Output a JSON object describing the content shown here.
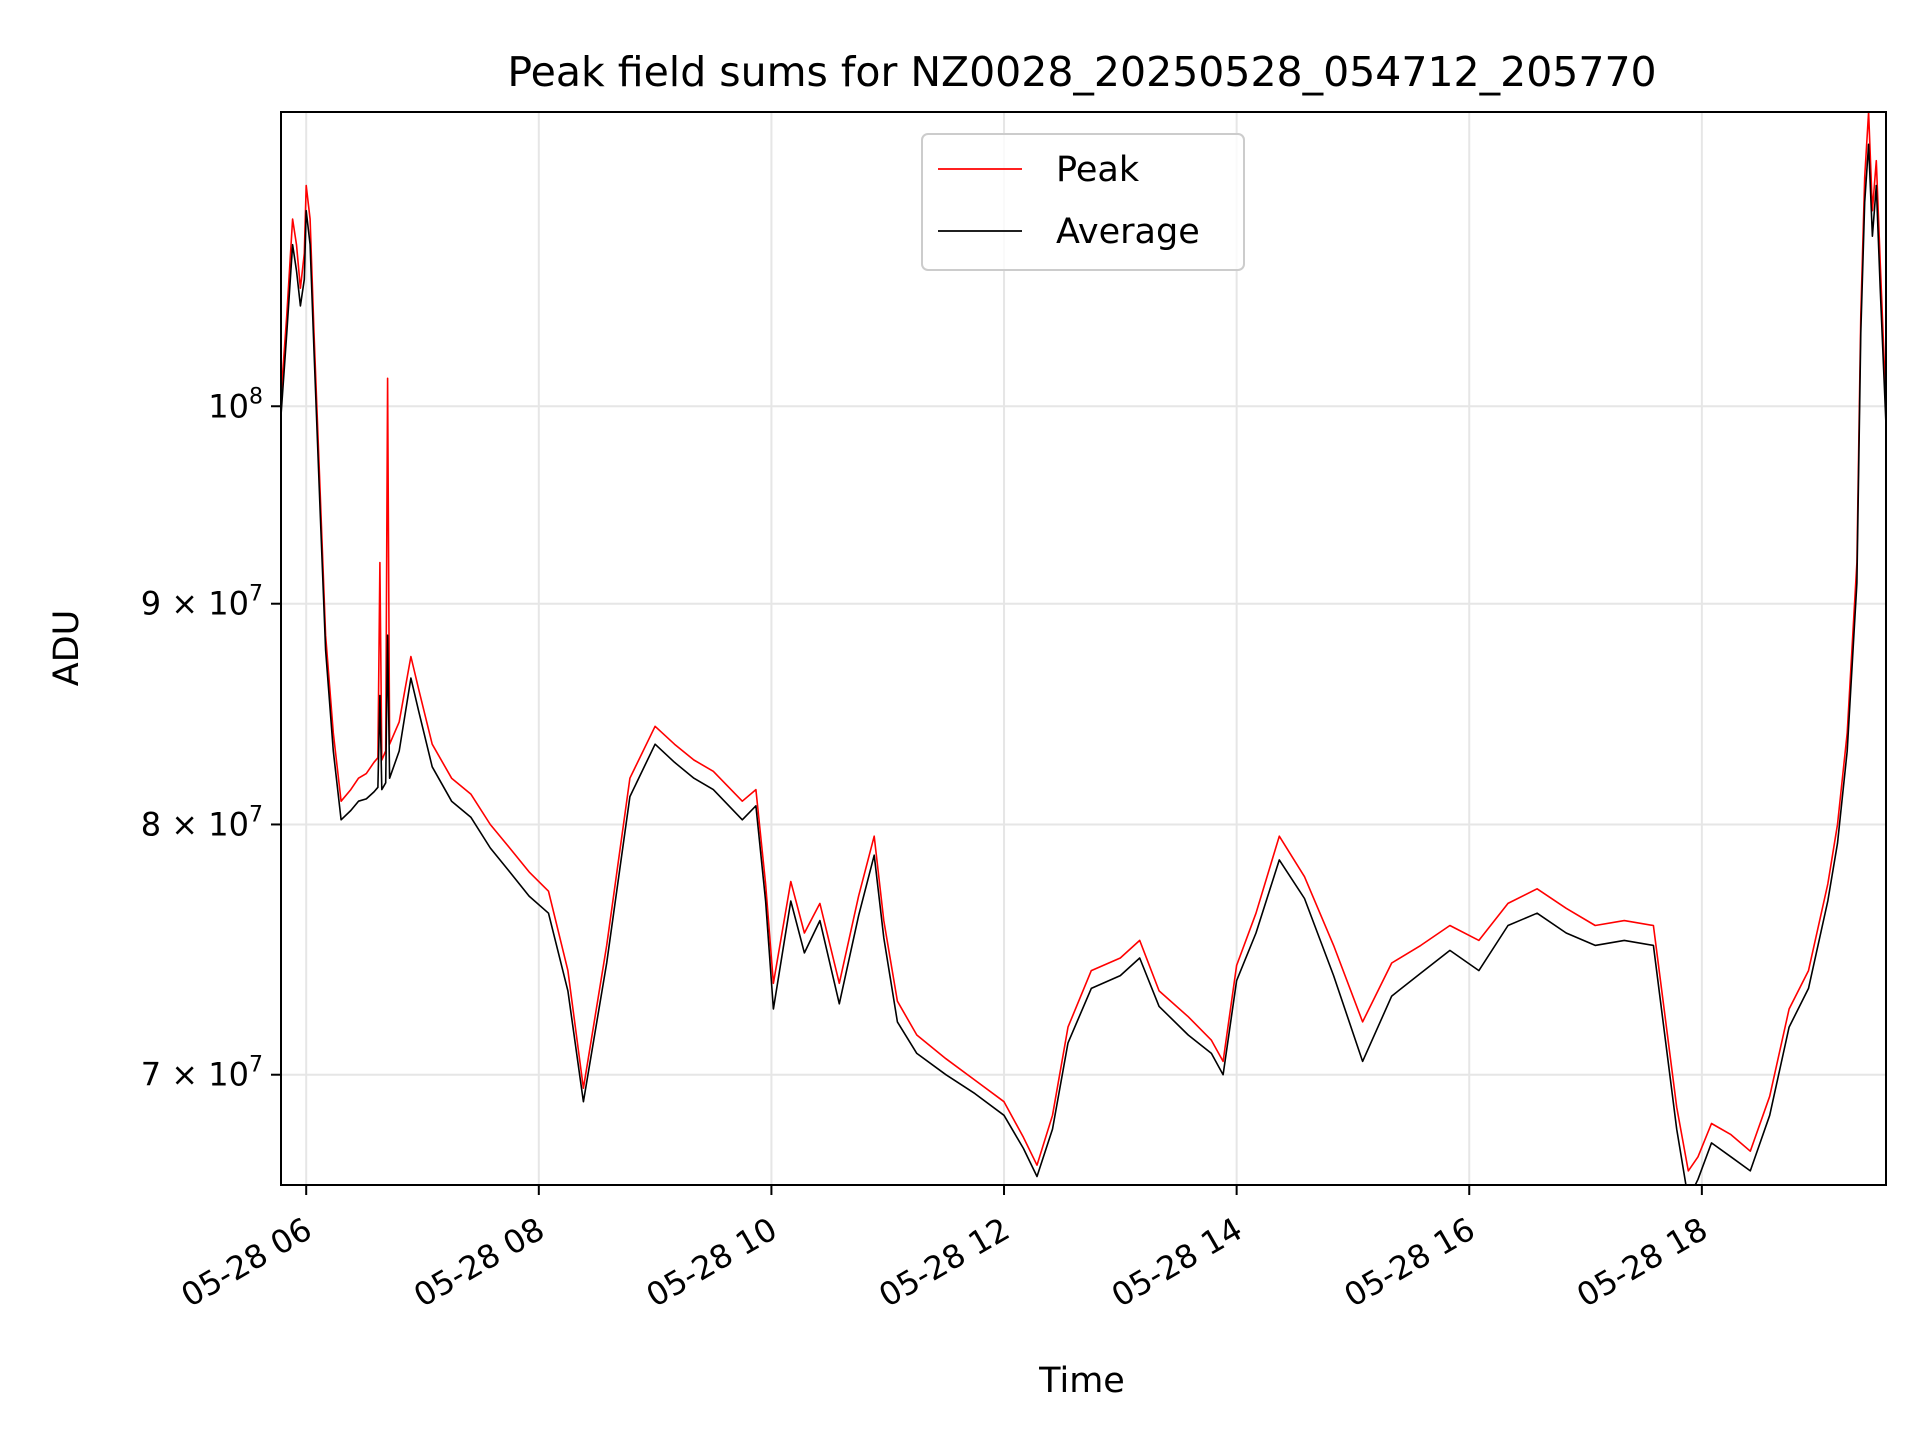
{
  "chart_data": {
    "type": "line",
    "title": "Peak field sums for NZ0028_20250528_054712_205770",
    "xlabel": "Time",
    "ylabel": "ADU",
    "yscale": "log",
    "xlim": [
      "05-28 05:47",
      "05-28 19:35"
    ],
    "ylim": [
      66000000,
      117000000
    ],
    "grid": true,
    "legend_position": "top-center",
    "x_ticks": [
      {
        "value": "05-28 06:00",
        "label": "05-28 06"
      },
      {
        "value": "05-28 08:00",
        "label": "05-28 08"
      },
      {
        "value": "05-28 10:00",
        "label": "05-28 10"
      },
      {
        "value": "05-28 12:00",
        "label": "05-28 12"
      },
      {
        "value": "05-28 14:00",
        "label": "05-28 14"
      },
      {
        "value": "05-28 16:00",
        "label": "05-28 16"
      },
      {
        "value": "05-28 18:00",
        "label": "05-28 18"
      }
    ],
    "y_ticks": [
      {
        "value": 70000000,
        "mantissa": "7",
        "base": "10",
        "exponent": "7"
      },
      {
        "value": 80000000,
        "mantissa": "8",
        "base": "10",
        "exponent": "7"
      },
      {
        "value": 90000000,
        "mantissa": "9",
        "base": "10",
        "exponent": "7"
      },
      {
        "value": 100000000,
        "mantissa": "",
        "base": "10",
        "exponent": "8"
      }
    ],
    "series": [
      {
        "name": "Peak",
        "color": "#ff0000",
        "x": [
          "05-28 05:47",
          "05-28 05:50",
          "05-28 05:53",
          "05-28 05:55",
          "05-28 05:57",
          "05-28 05:59",
          "05-28 06:00",
          "05-28 06:02",
          "05-28 06:04",
          "05-28 06:07",
          "05-28 06:10",
          "05-28 06:14",
          "05-28 06:18",
          "05-28 06:23",
          "05-28 06:27",
          "05-28 06:31",
          "05-28 06:35",
          "05-28 06:37",
          "05-28 06:38",
          "05-28 06:39",
          "05-28 06:41",
          "05-28 06:42",
          "05-28 06:43",
          "05-28 06:48",
          "05-28 06:54",
          "05-28 06:58",
          "05-28 07:05",
          "05-28 07:15",
          "05-28 07:25",
          "05-28 07:35",
          "05-28 07:45",
          "05-28 07:55",
          "05-28 08:05",
          "05-28 08:15",
          "05-28 08:23",
          "05-28 08:35",
          "05-28 08:47",
          "05-28 09:00",
          "05-28 09:10",
          "05-28 09:20",
          "05-28 09:30",
          "05-28 09:45",
          "05-28 09:52",
          "05-28 09:57",
          "05-28 10:01",
          "05-28 10:10",
          "05-28 10:17",
          "05-28 10:25",
          "05-28 10:35",
          "05-28 10:45",
          "05-28 10:53",
          "05-28 10:58",
          "05-28 11:05",
          "05-28 11:15",
          "05-28 11:30",
          "05-28 11:45",
          "05-28 12:00",
          "05-28 12:10",
          "05-28 12:17",
          "05-28 12:25",
          "05-28 12:33",
          "05-28 12:45",
          "05-28 13:00",
          "05-28 13:10",
          "05-28 13:20",
          "05-28 13:35",
          "05-28 13:47",
          "05-28 13:53",
          "05-28 14:00",
          "05-28 14:10",
          "05-28 14:22",
          "05-28 14:35",
          "05-28 14:50",
          "05-28 15:05",
          "05-28 15:20",
          "05-28 15:35",
          "05-28 15:50",
          "05-28 16:05",
          "05-28 16:20",
          "05-28 16:35",
          "05-28 16:50",
          "05-28 17:05",
          "05-28 17:20",
          "05-28 17:35",
          "05-28 17:47",
          "05-28 17:53",
          "05-28 17:58",
          "05-28 18:05",
          "05-28 18:15",
          "05-28 18:25",
          "05-28 18:35",
          "05-28 18:45",
          "05-28 18:55",
          "05-28 19:05",
          "05-28 19:10",
          "05-28 19:15",
          "05-28 19:20",
          "05-28 19:22",
          "05-28 19:24",
          "05-28 19:26",
          "05-28 19:28",
          "05-28 19:30",
          "05-28 19:32",
          "05-28 19:35"
        ],
        "values": [
          100500000,
          105000000,
          110500000,
          109000000,
          106500000,
          108500000,
          112500000,
          110500000,
          104000000,
          96000000,
          88500000,
          84000000,
          81000000,
          81500000,
          82000000,
          82200000,
          82700000,
          82900000,
          92000000,
          82800000,
          83200000,
          101500000,
          83500000,
          84500000,
          87500000,
          86000000,
          83500000,
          82000000,
          81300000,
          80000000,
          79000000,
          78000000,
          77200000,
          74000000,
          69500000,
          75000000,
          82000000,
          84300000,
          83500000,
          82800000,
          82300000,
          81000000,
          81500000,
          77500000,
          73500000,
          77600000,
          75500000,
          76700000,
          73500000,
          77000000,
          79500000,
          76000000,
          72800000,
          71500000,
          70600000,
          69800000,
          69000000,
          67700000,
          66700000,
          68500000,
          71800000,
          74000000,
          74500000,
          75200000,
          73200000,
          72200000,
          71300000,
          70500000,
          74200000,
          76300000,
          79500000,
          77800000,
          75000000,
          72000000,
          74300000,
          75000000,
          75800000,
          75200000,
          76700000,
          77300000,
          76500000,
          75800000,
          76000000,
          75800000,
          68800000,
          66500000,
          67000000,
          68200000,
          67800000,
          67200000,
          69200000,
          72500000,
          74000000,
          77500000,
          80000000,
          84000000,
          92000000,
          105000000,
          113000000,
          117000000,
          111000000,
          114000000,
          108000000,
          100000000
        ]
      },
      {
        "name": "Average",
        "color": "#000000",
        "x": [
          "05-28 05:47",
          "05-28 05:50",
          "05-28 05:53",
          "05-28 05:55",
          "05-28 05:57",
          "05-28 05:59",
          "05-28 06:00",
          "05-28 06:02",
          "05-28 06:04",
          "05-28 06:07",
          "05-28 06:10",
          "05-28 06:14",
          "05-28 06:18",
          "05-28 06:23",
          "05-28 06:27",
          "05-28 06:31",
          "05-28 06:35",
          "05-28 06:37",
          "05-28 06:38",
          "05-28 06:39",
          "05-28 06:41",
          "05-28 06:42",
          "05-28 06:43",
          "05-28 06:48",
          "05-28 06:54",
          "05-28 06:58",
          "05-28 07:05",
          "05-28 07:15",
          "05-28 07:25",
          "05-28 07:35",
          "05-28 07:45",
          "05-28 07:55",
          "05-28 08:05",
          "05-28 08:15",
          "05-28 08:23",
          "05-28 08:35",
          "05-28 08:47",
          "05-28 09:00",
          "05-28 09:10",
          "05-28 09:20",
          "05-28 09:30",
          "05-28 09:45",
          "05-28 09:52",
          "05-28 09:57",
          "05-28 10:01",
          "05-28 10:10",
          "05-28 10:17",
          "05-28 10:25",
          "05-28 10:35",
          "05-28 10:45",
          "05-28 10:53",
          "05-28 10:58",
          "05-28 11:05",
          "05-28 11:15",
          "05-28 11:30",
          "05-28 11:45",
          "05-28 12:00",
          "05-28 12:10",
          "05-28 12:17",
          "05-28 12:25",
          "05-28 12:33",
          "05-28 12:45",
          "05-28 13:00",
          "05-28 13:10",
          "05-28 13:20",
          "05-28 13:35",
          "05-28 13:47",
          "05-28 13:53",
          "05-28 14:00",
          "05-28 14:10",
          "05-28 14:22",
          "05-28 14:35",
          "05-28 14:50",
          "05-28 15:05",
          "05-28 15:20",
          "05-28 15:35",
          "05-28 15:50",
          "05-28 16:05",
          "05-28 16:20",
          "05-28 16:35",
          "05-28 16:50",
          "05-28 17:05",
          "05-28 17:20",
          "05-28 17:35",
          "05-28 17:47",
          "05-28 17:53",
          "05-28 17:58",
          "05-28 18:05",
          "05-28 18:15",
          "05-28 18:25",
          "05-28 18:35",
          "05-28 18:45",
          "05-28 18:55",
          "05-28 19:05",
          "05-28 19:10",
          "05-28 19:15",
          "05-28 19:20",
          "05-28 19:22",
          "05-28 19:24",
          "05-28 19:26",
          "05-28 19:28",
          "05-28 19:30",
          "05-28 19:32",
          "05-28 19:35"
        ],
        "values": [
          99500000,
          104000000,
          109000000,
          107500000,
          105500000,
          107000000,
          111000000,
          109000000,
          103000000,
          95000000,
          87800000,
          83200000,
          80200000,
          80600000,
          81000000,
          81100000,
          81400000,
          81600000,
          85700000,
          81500000,
          81800000,
          88500000,
          82000000,
          83200000,
          86500000,
          85000000,
          82500000,
          81000000,
          80300000,
          79000000,
          78000000,
          77000000,
          76300000,
          73200000,
          69000000,
          74300000,
          81200000,
          83500000,
          82700000,
          82000000,
          81500000,
          80200000,
          80800000,
          76800000,
          72500000,
          76800000,
          74700000,
          76000000,
          72700000,
          76200000,
          78700000,
          75300000,
          72000000,
          70800000,
          70000000,
          69300000,
          68500000,
          67300000,
          66300000,
          68000000,
          71200000,
          73300000,
          73800000,
          74500000,
          72600000,
          71500000,
          70800000,
          70000000,
          73600000,
          75500000,
          78500000,
          76900000,
          73800000,
          70500000,
          73000000,
          73900000,
          74800000,
          74000000,
          75800000,
          76300000,
          75500000,
          75000000,
          75200000,
          75000000,
          68000000,
          65500000,
          66200000,
          67500000,
          67000000,
          66500000,
          68500000,
          71800000,
          73300000,
          76800000,
          79200000,
          83200000,
          91000000,
          104000000,
          111500000,
          115000000,
          109500000,
          112500000,
          106500000,
          99000000
        ]
      }
    ]
  }
}
